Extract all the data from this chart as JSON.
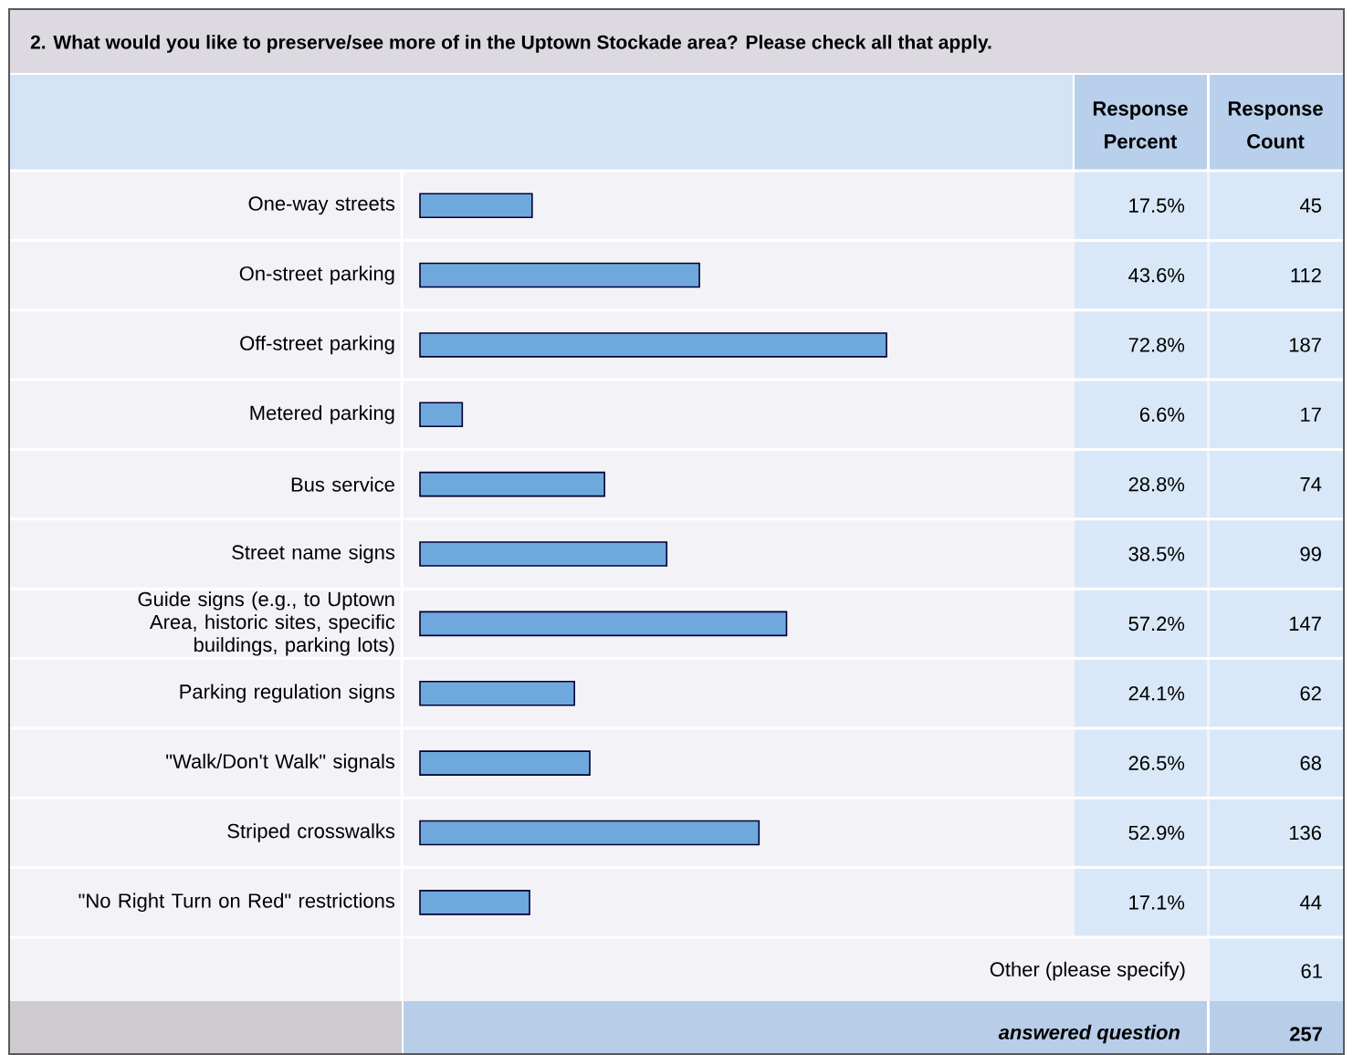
{
  "chart_data": {
    "type": "bar",
    "orientation": "horizontal",
    "title": "2. What would you like to preserve/see more of in the Uptown Stockade area? Please check all that apply.",
    "categories": [
      "One-way streets",
      "On-street parking",
      "Off-street parking",
      "Metered parking",
      "Bus service",
      "Street name signs",
      "Guide signs (e.g., to Uptown Area, historic sites, specific buildings, parking lots)",
      "Parking regulation signs",
      "\"Walk/Don't Walk\" signals",
      "Striped crosswalks",
      "\"No Right Turn on Red\" restrictions"
    ],
    "values": [
      17.5,
      43.6,
      72.8,
      6.6,
      28.8,
      38.5,
      57.2,
      24.1,
      26.5,
      52.9,
      17.1
    ],
    "value_labels": [
      "17.5%",
      "43.6%",
      "72.8%",
      "6.6%",
      "28.8%",
      "38.5%",
      "57.2%",
      "24.1%",
      "26.5%",
      "52.9%",
      "17.1%"
    ],
    "color": "#6fa8dc",
    "tick_labels": "y",
    "annotations": [
      "Response Percent",
      "Response Count",
      "45",
      "112",
      "187",
      "17",
      "74",
      "99",
      "147",
      "62",
      "68",
      "136",
      "44",
      "Other (please specify)",
      "61",
      "answered question",
      "257"
    ]
  }
}
